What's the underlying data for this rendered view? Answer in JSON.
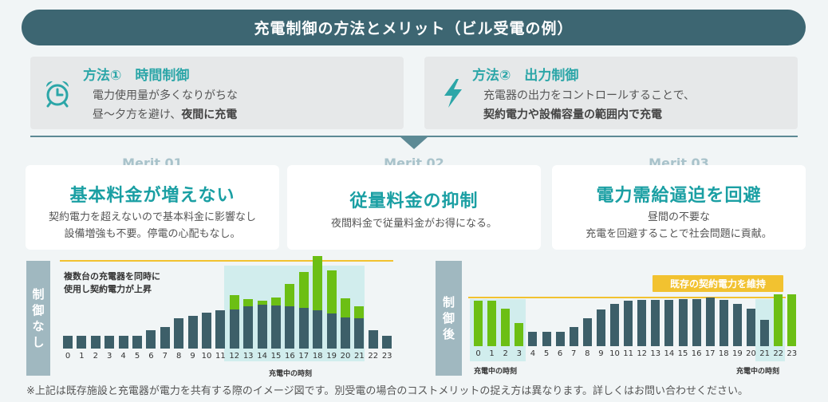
{
  "banner": {
    "title": "充電制御の方法とメリット（ビル受電の例）"
  },
  "method1": {
    "title": "方法①　時間制御",
    "line1": "電力使用量が多くなりがちな",
    "line2_plain": "昼〜夕方を避け、",
    "line2_bold": "夜間に充電",
    "icon": "alarm-clock-icon"
  },
  "method2": {
    "title": "方法②　出力制御",
    "line1": "充電器の出力をコントロールすることで、",
    "line2_bold": "契約電力や設備容量の範囲内で充電",
    "icon": "lightning-bolt-icon"
  },
  "merits": [
    {
      "label": "Merit 01",
      "heading": "基本料金が増えない",
      "desc1": "契約電力を超えないので基本料金に影響なし",
      "desc2": "設備増強も不要。停電の心配もなし。"
    },
    {
      "label": "Merit 02",
      "heading": "従量料金の抑制",
      "desc1": "夜間料金で従量料金がお得になる。",
      "desc2": ""
    },
    {
      "label": "Merit 03",
      "heading": "電力需給逼迫を回避",
      "desc1": "昼間の不要な",
      "desc2": "充電を回避することで社会問題に貢献。"
    }
  ],
  "chart_left": {
    "tab_label": [
      "制",
      "御",
      "な",
      "し"
    ],
    "annotation1": "複数台の充電器を同時に",
    "annotation2": "使用し契約電力が上昇",
    "xlabel": "充電中の時刻"
  },
  "chart_right": {
    "tab_label": [
      "制",
      "御",
      "後"
    ],
    "badge": "既存の契約電力を維持",
    "xlabel_left": "充電中の時刻",
    "xlabel_right": "充電中の時刻"
  },
  "footnote": "※上記は既存施設と充電器が電力を共有する際のイメージ図です。別受電の場合のコストメリットの捉え方は異なります。詳しくはお問い合わせください。",
  "colors": {
    "base": "#3d5f69",
    "ev": "#6cbf14",
    "contract": "#f2c230",
    "highlight": "#d1eded"
  },
  "chart_data": [
    {
      "type": "bar",
      "stacked": true,
      "categories": [
        "0",
        "1",
        "2",
        "3",
        "4",
        "5",
        "6",
        "7",
        "8",
        "9",
        "10",
        "11",
        "12",
        "13",
        "14",
        "15",
        "16",
        "17",
        "18",
        "19",
        "20",
        "21",
        "22",
        "23"
      ],
      "series": [
        {
          "values": [
            16,
            16,
            16,
            16,
            16,
            16,
            23,
            27,
            38,
            41,
            45,
            48,
            49,
            53,
            55,
            54,
            53,
            51,
            48,
            44,
            39,
            38,
            23,
            16
          ]
        },
        {
          "values": [
            0,
            0,
            0,
            0,
            0,
            0,
            0,
            0,
            0,
            0,
            0,
            0,
            18,
            9,
            5,
            10,
            28,
            45,
            68,
            54,
            24,
            15,
            0,
            0
          ]
        }
      ],
      "xlabel": "充電中の時刻",
      "contract_level": 110,
      "highlight_hours": [
        12,
        21
      ]
    },
    {
      "type": "bar",
      "stacked": false,
      "categories": [
        "0",
        "1",
        "2",
        "3",
        "4",
        "5",
        "6",
        "7",
        "8",
        "9",
        "10",
        "11",
        "12",
        "13",
        "14",
        "15",
        "16",
        "17",
        "18",
        "19",
        "20",
        "21",
        "22",
        "23"
      ],
      "series": [
        {
          "values": [
            0,
            0,
            0,
            0,
            18,
            18,
            18,
            24,
            35,
            46,
            53,
            57,
            58,
            58,
            58,
            59,
            59,
            61,
            58,
            53,
            47,
            33,
            0,
            0
          ]
        },
        {
          "values": [
            57,
            57,
            47,
            29,
            0,
            0,
            0,
            0,
            0,
            0,
            0,
            0,
            0,
            0,
            0,
            0,
            0,
            0,
            0,
            0,
            0,
            0,
            65,
            65
          ]
        }
      ],
      "xlabel": "充電中の時刻",
      "contract_level": 65,
      "highlight_hours": [
        [
          0,
          3
        ],
        [
          22,
          23
        ]
      ]
    }
  ]
}
